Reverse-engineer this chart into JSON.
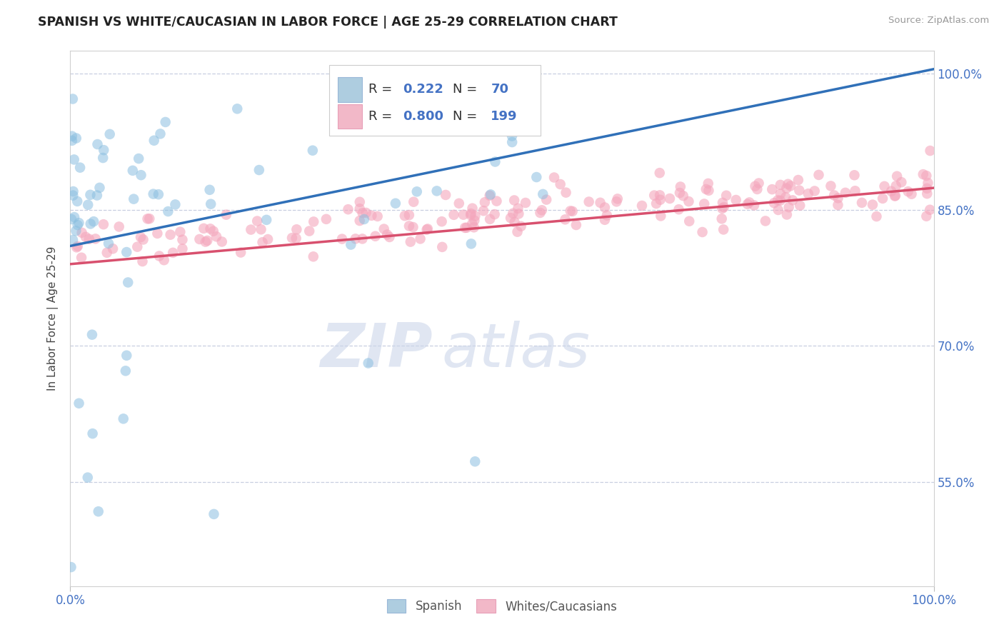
{
  "title": "SPANISH VS WHITE/CAUCASIAN IN LABOR FORCE | AGE 25-29 CORRELATION CHART",
  "source": "Source: ZipAtlas.com",
  "ylabel": "In Labor Force | Age 25-29",
  "xlim": [
    0.0,
    1.0
  ],
  "ylim": [
    0.435,
    1.025
  ],
  "yticks": [
    0.55,
    0.7,
    0.85,
    1.0
  ],
  "ytick_labels": [
    "55.0%",
    "70.0%",
    "85.0%",
    "100.0%"
  ],
  "blue_R": 0.222,
  "blue_N": 70,
  "pink_R": 0.8,
  "pink_N": 199,
  "blue_color": "#8bbfe0",
  "pink_color": "#f4a6bc",
  "blue_line_color": "#3070b8",
  "pink_line_color": "#d8506e",
  "legend_label_blue": "Spanish",
  "legend_label_pink": "Whites/Caucasians",
  "watermark_ZIP": "ZIP",
  "watermark_atlas": "atlas",
  "title_color": "#222222",
  "axis_tick_color": "#4472c4",
  "seed": 77,
  "blue_trend_x0": 0.0,
  "blue_trend_y0": 0.81,
  "blue_trend_x1": 1.0,
  "blue_trend_y1": 1.005,
  "pink_trend_x0": 0.0,
  "pink_trend_y0": 0.79,
  "pink_trend_x1": 1.0,
  "pink_trend_y1": 0.874
}
